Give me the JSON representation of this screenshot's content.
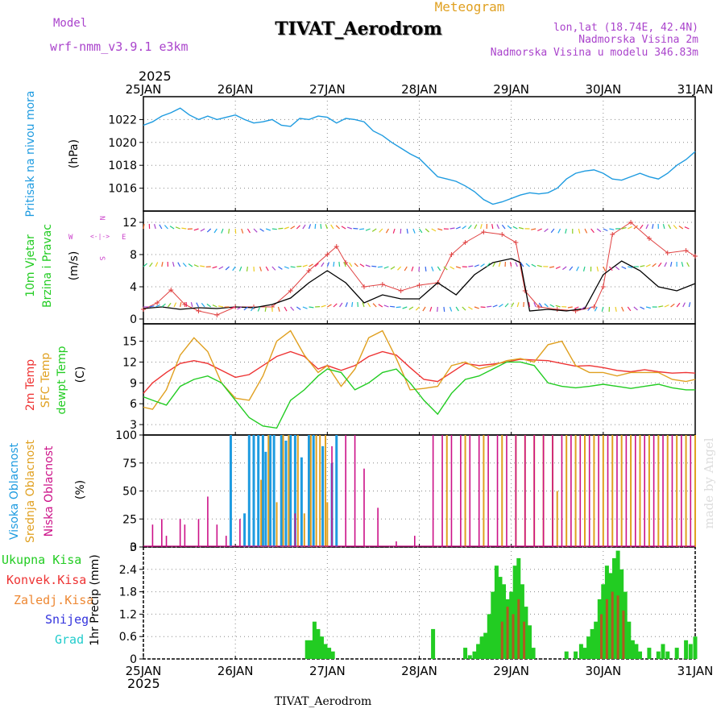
{
  "header": {
    "model_label": "Model",
    "model_value": "wrf-nmm_v3.9.1 e3km",
    "chart_kind": "Meteogram",
    "station": "TIVAT_Aerodrom",
    "lonlat": "lon,lat (18.74E, 42.4N)",
    "altitude": "Nadmorska Visina 2m",
    "model_altitude": "Nadmorska Visina u modelu 346.83m"
  },
  "footer": {
    "station": "TIVAT_Aerodrom",
    "credit": "made by Angel"
  },
  "time_axis": {
    "year": "2025",
    "labels": [
      "25JAN",
      "26JAN",
      "27JAN",
      "28JAN",
      "29JAN",
      "30JAN",
      "31JAN"
    ]
  },
  "colors": {
    "pressure": "#1e9be0",
    "wind_label": "#22cc22",
    "wind_dir": "#cc44cc",
    "t2m": "#ee3333",
    "sfc": "#e0a020",
    "dewpt": "#22cc22",
    "cloud_high": "#1e9be0",
    "cloud_mid": "#e0a020",
    "cloud_low": "#cc1188",
    "precip_total": "#22cc22",
    "precip_conv": "#ee3333",
    "precip_grid": "#ee8833",
    "snow": "#3333dd",
    "graupel": "#22cccc",
    "model": "#aa44cc",
    "info": "#aa44cc",
    "title_meteo": "#e0a020"
  },
  "chart_data": [
    {
      "type": "line",
      "panel": "pressure",
      "series_label": "Pritisak na nivou mora",
      "unit_label": "(hPa)",
      "ylim": [
        1014,
        1024
      ],
      "yticks": [
        1016,
        1018,
        1020,
        1022
      ],
      "x": [
        0,
        0.1,
        0.2,
        0.3,
        0.4,
        0.5,
        0.6,
        0.7,
        0.8,
        0.9,
        1.0,
        1.1,
        1.2,
        1.3,
        1.4,
        1.5,
        1.6,
        1.7,
        1.8,
        1.9,
        2.0,
        2.1,
        2.2,
        2.3,
        2.4,
        2.5,
        2.6,
        2.7,
        2.8,
        2.9,
        3.0,
        3.1,
        3.2,
        3.3,
        3.4,
        3.5,
        3.6,
        3.7,
        3.8,
        3.9,
        4.0,
        4.1,
        4.2,
        4.3,
        4.4,
        4.5,
        4.6,
        4.7,
        4.8,
        4.9,
        5.0,
        5.1,
        5.2,
        5.3,
        5.4,
        5.5,
        5.6,
        5.7,
        5.8,
        5.9,
        6.0
      ],
      "values": [
        1021.5,
        1021.8,
        1022.3,
        1022.6,
        1023.0,
        1022.4,
        1022.0,
        1022.3,
        1022.0,
        1022.2,
        1022.4,
        1022.0,
        1021.7,
        1021.8,
        1022.0,
        1021.5,
        1021.4,
        1022.1,
        1022.0,
        1022.3,
        1022.2,
        1021.7,
        1022.1,
        1022.0,
        1021.8,
        1021.0,
        1020.6,
        1020.0,
        1019.5,
        1019.0,
        1018.6,
        1017.8,
        1017.0,
        1016.8,
        1016.6,
        1016.2,
        1015.7,
        1015.0,
        1014.6,
        1014.8,
        1015.1,
        1015.4,
        1015.6,
        1015.5,
        1015.6,
        1016.0,
        1016.8,
        1017.3,
        1017.5,
        1017.6,
        1017.3,
        1016.8,
        1016.7,
        1017.0,
        1017.3,
        1017.0,
        1016.8,
        1017.3,
        1018.0,
        1018.5,
        1019.2
      ]
    },
    {
      "type": "line",
      "panel": "wind",
      "series_label": "10m Vjetar",
      "series_label2": "Brzina i Pravac",
      "unit_label": "(m/s)",
      "ylim": [
        -0.6,
        13.4
      ],
      "yticks": [
        0,
        4,
        8,
        12
      ],
      "rose_n": "N",
      "rose_s": "S",
      "rose_e": "E",
      "rose_w": "W",
      "rose_mid": "<-|->",
      "series": [
        {
          "name": "wind speed",
          "x": [
            0,
            0.2,
            0.4,
            0.6,
            0.8,
            1.0,
            1.2,
            1.4,
            1.6,
            1.8,
            2.0,
            2.2,
            2.4,
            2.6,
            2.8,
            3.0,
            3.2,
            3.4,
            3.6,
            3.8,
            4.0,
            4.1,
            4.2,
            4.4,
            4.6,
            4.8,
            5.0,
            5.2,
            5.4,
            5.6,
            5.8,
            6.0
          ],
          "values": [
            1.3,
            1.5,
            1.2,
            1.4,
            1.3,
            1.5,
            1.4,
            1.8,
            2.6,
            4.5,
            6.0,
            4.5,
            2.0,
            3.0,
            2.5,
            2.5,
            4.5,
            3.0,
            5.5,
            7.0,
            7.5,
            7.0,
            1.0,
            1.2,
            1.0,
            1.3,
            5.5,
            7.2,
            6.0,
            4.0,
            3.5,
            4.4
          ]
        },
        {
          "name": "wind gust",
          "x": [
            0,
            0.15,
            0.3,
            0.45,
            0.6,
            0.8,
            1.0,
            1.2,
            1.4,
            1.6,
            1.8,
            2.0,
            2.1,
            2.2,
            2.4,
            2.6,
            2.8,
            3.0,
            3.2,
            3.35,
            3.5,
            3.7,
            3.9,
            4.05,
            4.15,
            4.3,
            4.5,
            4.7,
            4.9,
            5.0,
            5.1,
            5.3,
            5.5,
            5.7,
            5.9,
            6.0
          ],
          "values": [
            1.2,
            2.0,
            3.6,
            1.8,
            1.0,
            0.5,
            1.5,
            1.5,
            1.5,
            3.5,
            6.0,
            8.0,
            9.0,
            7.0,
            4.0,
            4.3,
            3.5,
            4.2,
            4.5,
            8.0,
            9.5,
            10.8,
            10.5,
            9.5,
            3.5,
            1.5,
            1.2,
            1.0,
            1.5,
            4.0,
            10.5,
            12.0,
            10.0,
            8.2,
            8.5,
            7.8
          ]
        }
      ]
    },
    {
      "type": "line",
      "panel": "temperature",
      "series_label": "2m Temp",
      "series_label2": "SFC Temp",
      "series_label3": "dewpt Temp",
      "unit_label": "(C)",
      "ylim": [
        1.5,
        17.5
      ],
      "yticks": [
        3,
        6,
        9,
        12,
        15
      ],
      "series": [
        {
          "name": "2m Temp",
          "x": [
            0,
            0.1,
            0.25,
            0.4,
            0.55,
            0.7,
            0.85,
            1.0,
            1.15,
            1.3,
            1.45,
            1.6,
            1.75,
            1.9,
            2.0,
            2.15,
            2.3,
            2.45,
            2.6,
            2.75,
            2.9,
            3.05,
            3.2,
            3.35,
            3.5,
            3.65,
            3.8,
            3.95,
            4.1,
            4.25,
            4.4,
            4.55,
            4.7,
            4.85,
            5.0,
            5.15,
            5.3,
            5.45,
            5.6,
            5.75,
            5.9,
            6.0
          ],
          "values": [
            7.5,
            9.0,
            10.5,
            11.8,
            12.2,
            11.8,
            10.8,
            9.8,
            10.2,
            11.5,
            12.8,
            13.5,
            12.8,
            11.0,
            11.5,
            10.8,
            11.5,
            12.8,
            13.5,
            13.0,
            11.2,
            9.5,
            9.2,
            10.5,
            11.8,
            11.5,
            11.7,
            12.0,
            12.4,
            12.3,
            12.2,
            11.8,
            11.4,
            11.5,
            11.2,
            10.8,
            10.6,
            10.9,
            10.6,
            10.4,
            10.5,
            10.4
          ]
        },
        {
          "name": "SFC Temp",
          "x": [
            0,
            0.1,
            0.25,
            0.4,
            0.55,
            0.7,
            0.85,
            1.0,
            1.15,
            1.3,
            1.45,
            1.6,
            1.75,
            1.9,
            2.0,
            2.15,
            2.3,
            2.45,
            2.6,
            2.75,
            2.9,
            3.05,
            3.2,
            3.35,
            3.5,
            3.65,
            3.8,
            3.95,
            4.1,
            4.25,
            4.4,
            4.55,
            4.7,
            4.85,
            5.0,
            5.15,
            5.3,
            5.45,
            5.6,
            5.75,
            5.9,
            6.0
          ],
          "values": [
            5.5,
            5.2,
            8.0,
            13.0,
            15.5,
            13.5,
            9.0,
            6.8,
            6.5,
            10.0,
            15.0,
            16.5,
            13.0,
            10.5,
            11.5,
            8.5,
            11.0,
            15.5,
            16.5,
            12.5,
            8.0,
            8.2,
            8.5,
            11.5,
            12.0,
            11.0,
            11.5,
            12.2,
            12.5,
            12.0,
            14.5,
            15.0,
            11.5,
            10.5,
            10.5,
            10.0,
            10.5,
            10.5,
            10.5,
            9.5,
            9.2,
            9.5
          ]
        },
        {
          "name": "dewpt Temp",
          "x": [
            0,
            0.1,
            0.25,
            0.4,
            0.55,
            0.7,
            0.85,
            1.0,
            1.15,
            1.3,
            1.45,
            1.6,
            1.75,
            1.9,
            2.0,
            2.15,
            2.3,
            2.45,
            2.6,
            2.75,
            2.9,
            3.05,
            3.2,
            3.35,
            3.5,
            3.65,
            3.8,
            3.95,
            4.1,
            4.25,
            4.4,
            4.55,
            4.7,
            4.85,
            5.0,
            5.15,
            5.3,
            5.45,
            5.6,
            5.75,
            5.9,
            6.0
          ],
          "values": [
            7.0,
            6.5,
            5.8,
            8.5,
            9.5,
            10.0,
            9.0,
            6.5,
            4.0,
            2.8,
            2.5,
            6.5,
            8.0,
            10.0,
            11.0,
            10.5,
            8.0,
            9.0,
            10.5,
            11.0,
            9.0,
            6.5,
            4.5,
            7.5,
            9.5,
            10.0,
            11.0,
            12.0,
            12.0,
            11.5,
            9.0,
            8.5,
            8.3,
            8.5,
            8.8,
            8.5,
            8.2,
            8.5,
            8.8,
            8.3,
            8.0,
            8.0
          ]
        }
      ]
    },
    {
      "type": "bar",
      "panel": "cloud",
      "series_label": "Visoka Oblacnost",
      "series_label2": "Srednja Oblacnost",
      "series_label3": "Niska Oblacnost",
      "unit_label": "(%)",
      "ylim": [
        0,
        100
      ],
      "yticks": [
        0,
        25,
        50,
        75,
        100
      ],
      "series": [
        {
          "name": "high",
          "x": [
            0.95,
            1.1,
            1.15,
            1.2,
            1.25,
            1.3,
            1.33,
            1.38,
            1.42,
            1.5,
            1.55,
            1.6,
            1.65,
            1.72,
            1.8,
            1.85,
            1.95,
            2.05,
            2.1
          ],
          "values": [
            100,
            30,
            100,
            100,
            100,
            100,
            85,
            100,
            100,
            100,
            95,
            100,
            100,
            80,
            100,
            100,
            90,
            75,
            100
          ]
        },
        {
          "name": "mid",
          "x": [
            1.28,
            1.36,
            1.45,
            1.52,
            1.58,
            1.68,
            1.75,
            1.82,
            1.88,
            1.92,
            1.98,
            2.0,
            3.3,
            3.5,
            3.7,
            3.9,
            4.05,
            4.15,
            4.25,
            4.35,
            4.45,
            4.5,
            4.6,
            4.7,
            4.8,
            4.9,
            5.0,
            5.1,
            5.2,
            5.3,
            5.4,
            5.5,
            5.6,
            5.7,
            5.8,
            5.9,
            6.0
          ],
          "values": [
            60,
            100,
            40,
            100,
            100,
            100,
            30,
            100,
            100,
            100,
            100,
            40,
            100,
            100,
            100,
            100,
            100,
            100,
            100,
            100,
            100,
            50,
            100,
            100,
            100,
            100,
            100,
            100,
            100,
            100,
            100,
            100,
            100,
            100,
            100,
            100,
            100
          ]
        },
        {
          "name": "low",
          "x": [
            0.1,
            0.2,
            0.25,
            0.4,
            0.45,
            0.6,
            0.7,
            0.8,
            0.9,
            1.05,
            1.65,
            2.05,
            2.2,
            2.3,
            2.4,
            2.55,
            2.75,
            2.95,
            3.15,
            3.25,
            3.35,
            3.45,
            3.55,
            3.65,
            3.75,
            3.85,
            3.95,
            4.05,
            4.15,
            4.25,
            4.35,
            4.45,
            4.55,
            4.65,
            4.75,
            4.85,
            4.95,
            5.05,
            5.15,
            5.25,
            5.35,
            5.45,
            5.55,
            5.65,
            5.75,
            5.85,
            5.95
          ],
          "values": [
            20,
            25,
            10,
            25,
            20,
            25,
            45,
            20,
            10,
            25,
            30,
            90,
            100,
            100,
            70,
            35,
            5,
            10,
            100,
            100,
            100,
            100,
            100,
            100,
            100,
            100,
            100,
            100,
            100,
            100,
            100,
            100,
            100,
            100,
            100,
            100,
            100,
            100,
            100,
            100,
            100,
            100,
            100,
            100,
            100,
            100,
            100
          ]
        }
      ]
    },
    {
      "type": "bar",
      "panel": "precip",
      "series_label": "Ukupna Kisa",
      "series_label2": "Konvek.Kisa",
      "series_label3": "Zaledj.Kisa",
      "series_label4": "Snijeg",
      "series_label5": "Grad",
      "unit_label": "1hr Precip (mm)",
      "ylim": [
        0,
        3
      ],
      "yticks": [
        0,
        0.6,
        1.2,
        1.8,
        2.4,
        3
      ],
      "series": [
        {
          "name": "total",
          "x": [
            1.78,
            1.82,
            1.86,
            1.9,
            1.94,
            1.98,
            2.02,
            2.06,
            3.15,
            3.5,
            3.55,
            3.6,
            3.64,
            3.68,
            3.72,
            3.76,
            3.8,
            3.84,
            3.88,
            3.92,
            3.96,
            4.0,
            4.04,
            4.08,
            4.12,
            4.16,
            4.2,
            4.24,
            4.6,
            4.7,
            4.76,
            4.8,
            4.84,
            4.88,
            4.92,
            4.96,
            5.0,
            5.04,
            5.08,
            5.12,
            5.16,
            5.2,
            5.24,
            5.28,
            5.32,
            5.36,
            5.4,
            5.5,
            5.6,
            5.65,
            5.7,
            5.8,
            5.9,
            5.95,
            6.0
          ],
          "values": [
            0.5,
            0.5,
            1.0,
            0.8,
            0.6,
            0.4,
            0.3,
            0.2,
            0.8,
            0.3,
            0.1,
            0.2,
            0.4,
            0.6,
            0.7,
            1.2,
            1.8,
            2.5,
            2.2,
            2.0,
            1.6,
            1.8,
            2.5,
            2.7,
            2.0,
            1.4,
            0.9,
            0.3,
            0.2,
            0.2,
            0.4,
            0.3,
            0.6,
            0.8,
            1.0,
            1.6,
            2.0,
            2.5,
            2.3,
            2.7,
            2.9,
            2.4,
            1.8,
            1.0,
            0.5,
            0.4,
            0.2,
            0.3,
            0.2,
            0.4,
            0.2,
            0.3,
            0.5,
            0.4,
            0.6
          ]
        },
        {
          "name": "convective",
          "x": [
            3.9,
            3.96,
            4.02,
            4.08,
            4.14,
            4.98,
            5.04,
            5.1,
            5.16,
            5.22
          ],
          "values": [
            1.0,
            1.4,
            1.2,
            1.6,
            1.0,
            1.2,
            1.6,
            1.8,
            1.7,
            1.3
          ]
        }
      ]
    }
  ]
}
